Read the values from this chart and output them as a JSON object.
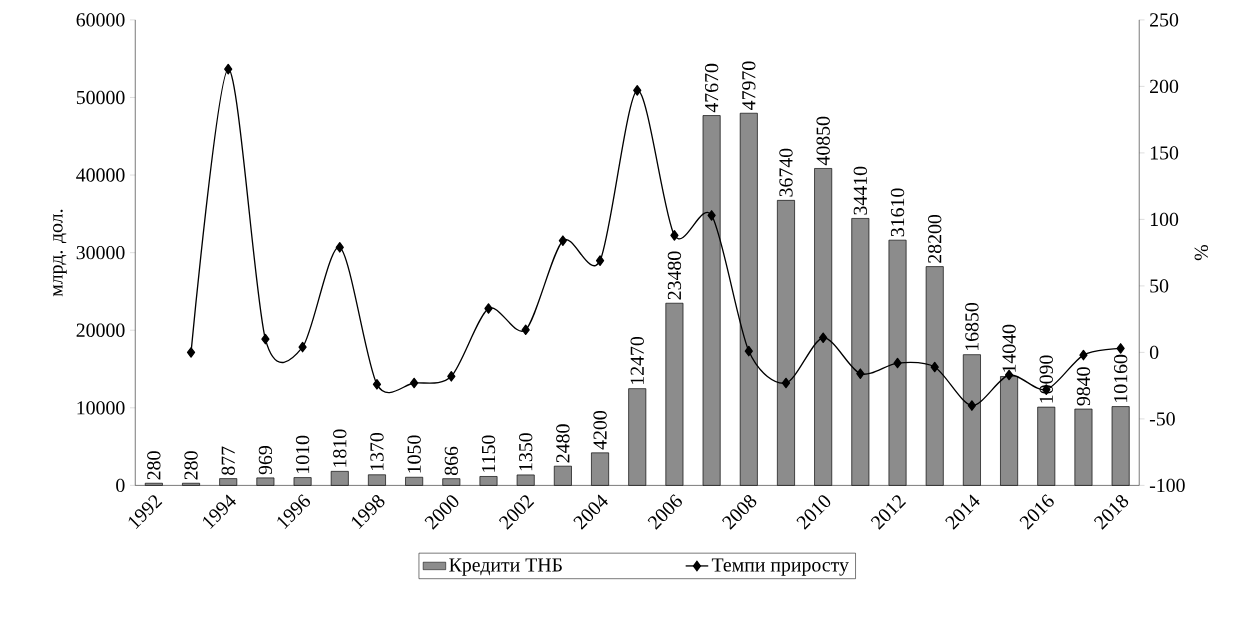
{
  "chart_data": {
    "type": "bar",
    "ylabel": "млрд. дол.",
    "y2label": "%",
    "categories": [
      "1992",
      null,
      "1994",
      null,
      "1996",
      null,
      "1998",
      null,
      "2000",
      null,
      "2002",
      null,
      "2004",
      null,
      "2006",
      null,
      "2008",
      null,
      "2010",
      null,
      "2012",
      null,
      "2014",
      null,
      "2016",
      null,
      "2018"
    ],
    "series": [
      {
        "name": "Кредити ТНБ",
        "color": "#8c8c8c",
        "values": [
          280,
          280,
          877,
          969,
          1010,
          1810,
          1370,
          1050,
          866,
          1150,
          1350,
          2480,
          4200,
          12470,
          23480,
          47670,
          47970,
          36740,
          40850,
          34410,
          31610,
          28200,
          16850,
          14040,
          10090,
          9840,
          10160
        ],
        "value_labels": [
          "280",
          "280",
          "877",
          "969",
          "1010",
          "1810",
          "1370",
          "1050",
          "866",
          "1150",
          "1350",
          "2480",
          "4200",
          "12470",
          "23480",
          "47670",
          "47970",
          "36740",
          "40850",
          "34410",
          "31610",
          "28200",
          "16850",
          "14040",
          "10090",
          "9840",
          "10160"
        ]
      },
      {
        "name": "Темпи приросту",
        "type": "line",
        "axis": "y2",
        "color": "#000000",
        "marker": "diamond",
        "values": [
          null,
          0,
          213,
          10,
          4,
          79,
          -24,
          -23,
          -18,
          33,
          17,
          84,
          69,
          197,
          88,
          103,
          1,
          -23,
          11,
          -16,
          -8,
          -11,
          -40,
          -17,
          -28,
          -2,
          3
        ]
      }
    ],
    "ylim": [
      0,
      60000
    ],
    "yticks": [
      0,
      10000,
      20000,
      30000,
      40000,
      50000,
      60000
    ],
    "y2lim": [
      -100,
      250
    ],
    "y2ticks": [
      -100,
      -50,
      0,
      50,
      100,
      150,
      200,
      250
    ],
    "legend": "bottom",
    "grid": false
  }
}
